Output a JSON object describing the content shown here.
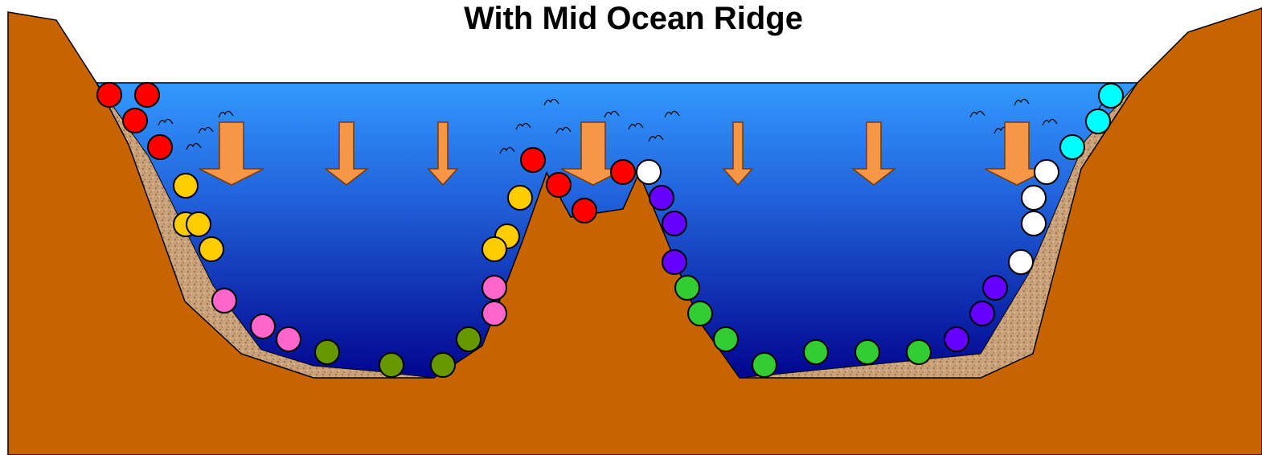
{
  "title": "With Mid Ocean Ridge"
}
